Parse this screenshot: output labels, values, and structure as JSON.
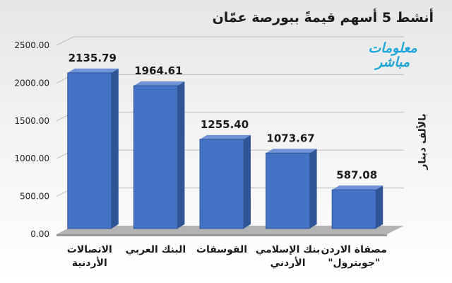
{
  "chart_data": {
    "type": "bar",
    "title": "أنشط 5 أسهم قيمةً ببورصة عمّان",
    "ylabel": "بالألف دينار",
    "categories": [
      [
        "الاتصالات",
        "الأردنية"
      ],
      [
        "البنك العربي"
      ],
      [
        "الفوسفات"
      ],
      [
        "بنك الإسلامي",
        "الأردني"
      ],
      [
        "مصفاة الاردن",
        "\"جوبترول\""
      ]
    ],
    "values": [
      2135.79,
      1964.61,
      1255.4,
      1073.67,
      587.08
    ],
    "value_labels": [
      "2135.79",
      "1964.61",
      "1255.40",
      "1073.67",
      "587.08"
    ],
    "ylim": [
      0,
      2500
    ],
    "yticks": [
      "0.00",
      "500.00",
      "1000.00",
      "1500.00",
      "2000.00",
      "2500.00"
    ],
    "grid": true,
    "bar_color": "#4472c4"
  },
  "logo": {
    "line1": "معلومات",
    "line2": "مباشر"
  }
}
